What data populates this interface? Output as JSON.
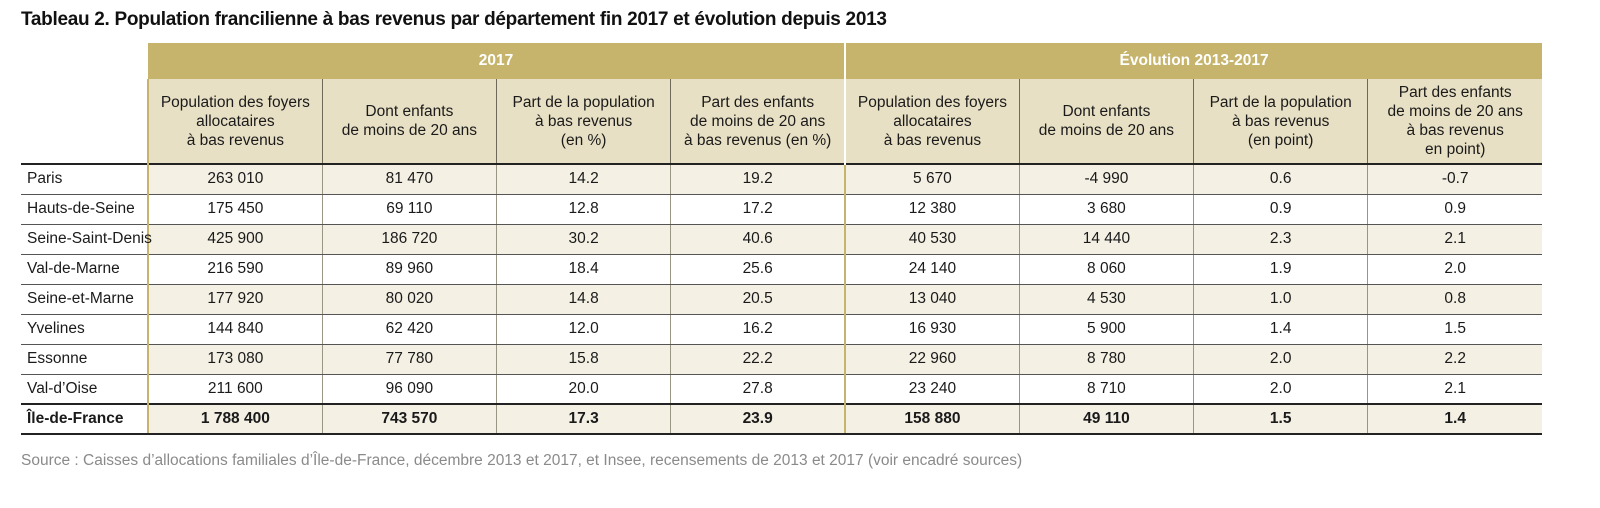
{
  "title": "Tableau 2. Population francilienne à bas revenus par département fin 2017 et évolution depuis 2013",
  "groups": {
    "g2017": "2017",
    "gevol": "Évolution 2013-2017"
  },
  "columns": [
    "Population des foyers\nallocataires\nà bas revenus",
    "Dont enfants\nde moins de 20 ans",
    "Part de la population\nà bas revenus\n(en %)",
    "Part des enfants\nde moins de 20 ans\nà bas revenus (en %)",
    "Population des foyers\nallocataires\nà bas revenus",
    "Dont enfants\nde moins de 20 ans",
    "Part de la population\nà bas revenus\n(en point)",
    "Part des enfants\nde moins de 20 ans\nà bas revenus\nen point)"
  ],
  "rows": [
    {
      "dep": "Paris",
      "v": [
        "263 010",
        "81 470",
        "14.2",
        "19.2",
        "5 670",
        "-4 990",
        "0.6",
        "-0.7"
      ]
    },
    {
      "dep": "Hauts-de-Seine",
      "v": [
        "175 450",
        "69 110",
        "12.8",
        "17.2",
        "12 380",
        "3 680",
        "0.9",
        "0.9"
      ]
    },
    {
      "dep": "Seine-Saint-Denis",
      "v": [
        "425 900",
        "186 720",
        "30.2",
        "40.6",
        "40 530",
        "14 440",
        "2.3",
        "2.1"
      ]
    },
    {
      "dep": "Val-de-Marne",
      "v": [
        "216 590",
        "89 960",
        "18.4",
        "25.6",
        "24 140",
        "8 060",
        "1.9",
        "2.0"
      ]
    },
    {
      "dep": "Seine-et-Marne",
      "v": [
        "177 920",
        "80 020",
        "14.8",
        "20.5",
        "13 040",
        "4 530",
        "1.0",
        "0.8"
      ]
    },
    {
      "dep": "Yvelines",
      "v": [
        "144 840",
        "62 420",
        "12.0",
        "16.2",
        "16 930",
        "5 900",
        "1.4",
        "1.5"
      ]
    },
    {
      "dep": "Essonne",
      "v": [
        "173 080",
        "77 780",
        "15.8",
        "22.2",
        "22 960",
        "8 780",
        "2.0",
        "2.2"
      ]
    },
    {
      "dep": "Val-d’Oise",
      "v": [
        "211 600",
        "96 090",
        "20.0",
        "27.8",
        "23 240",
        "8 710",
        "2.0",
        "2.1"
      ]
    },
    {
      "dep": "Île-de-France",
      "v": [
        "1 788 400",
        "743 570",
        "17.3",
        "23.9",
        "158 880",
        "49 110",
        "1.5",
        "1.4"
      ]
    }
  ],
  "source": "Source : Caisses d’allocations familiales d’Île-de-France, décembre 2013 et 2017, et Insee, recensements de 2013 et 2017 (voir encadré sources)",
  "colors": {
    "header_gold": "#c6b46c",
    "subheader_beige": "#e8e0c4",
    "row_shade": "#f4f0e4"
  }
}
